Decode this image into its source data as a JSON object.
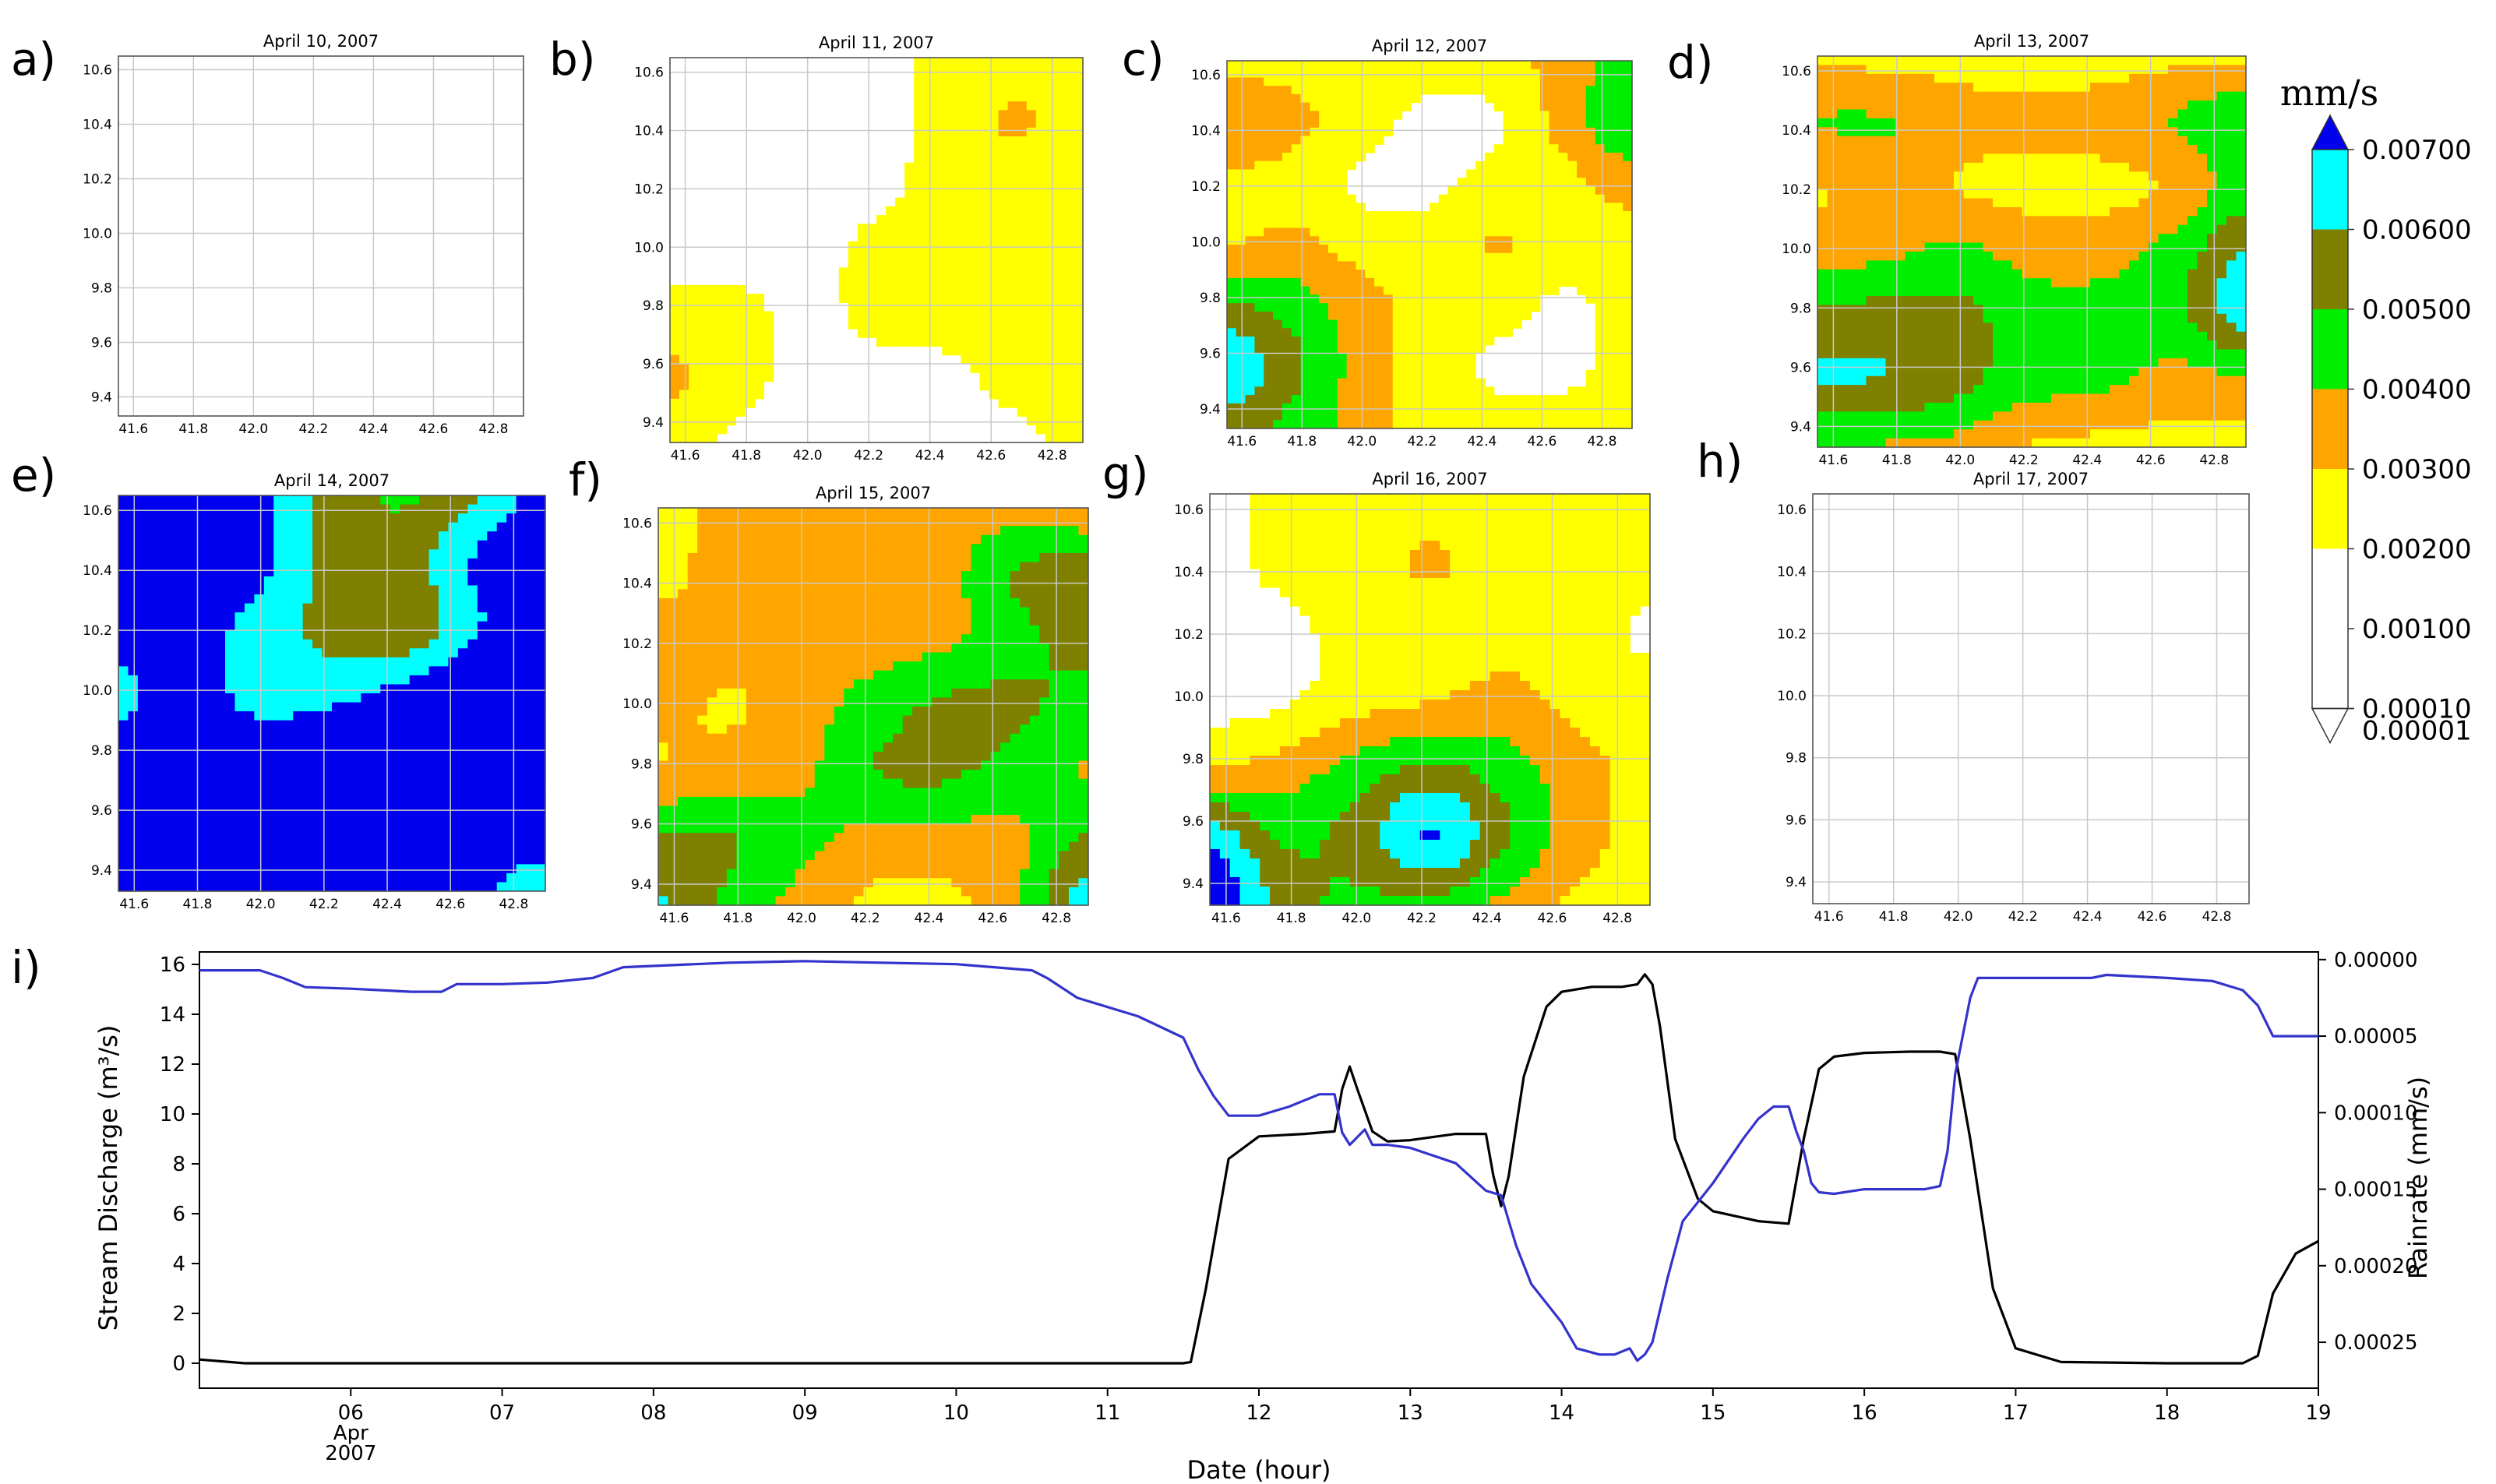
{
  "colors": {
    "c1": "#ffffff",
    "c2": "#ffff00",
    "c3": "#ffa500",
    "c4": "#00ee00",
    "c5": "#7f7f00",
    "c6": "#00ffff",
    "c7": "#0000ee",
    "discharge": "#000000",
    "rainrate": "#3333cc"
  },
  "colorbar": {
    "title": "mm/s",
    "labels": [
      "0.00700",
      "0.00600",
      "0.00500",
      "0.00400",
      "0.00300",
      "0.00200",
      "0.00100",
      "0.00010",
      "0.00001"
    ]
  },
  "chart_data": [
    {
      "type": "heatmap",
      "panel": "a)",
      "title": "April 10, 2007",
      "xticks": [
        "41.6",
        "41.8",
        "42.0",
        "42.2",
        "42.4",
        "42.6",
        "42.8"
      ],
      "yticks": [
        "10.6",
        "10.4",
        "10.2",
        "10.0",
        "9.8",
        "9.6",
        "9.4"
      ],
      "xlim": [
        41.55,
        42.9
      ],
      "ylim": [
        9.33,
        10.65
      ],
      "levels": "0 = below 0.00001 mm/s; 1-6 = 0.001,0.002,0.003,0.004,0.005,0.006 mm/s bands; 7 = above 0.007",
      "grid_level": [
        [
          0,
          0,
          0,
          0,
          0,
          0,
          0
        ],
        [
          0,
          0,
          0,
          0,
          0,
          0,
          0
        ],
        [
          0,
          0,
          0,
          0,
          0,
          0,
          0
        ],
        [
          0,
          0,
          0,
          0,
          0,
          0,
          0
        ],
        [
          0,
          0,
          0,
          0,
          0,
          0,
          0
        ],
        [
          0,
          0,
          0,
          0,
          0,
          0,
          0
        ],
        [
          0,
          0,
          0,
          0,
          0,
          0,
          0
        ]
      ]
    },
    {
      "type": "heatmap",
      "panel": "b)",
      "title": "April 11, 2007",
      "xticks": [
        "41.6",
        "41.8",
        "42.0",
        "42.2",
        "42.4",
        "42.6",
        "42.8"
      ],
      "yticks": [
        "10.6",
        "10.4",
        "10.2",
        "10.0",
        "9.8",
        "9.6",
        "9.4"
      ],
      "xlim": [
        41.55,
        42.9
      ],
      "ylim": [
        9.33,
        10.65
      ],
      "grid_level": [
        [
          0,
          0,
          0,
          0,
          1,
          1,
          1
        ],
        [
          0,
          0,
          0,
          0,
          1,
          2,
          1
        ],
        [
          0,
          0,
          0,
          0,
          1,
          1,
          1
        ],
        [
          0,
          0,
          0,
          1,
          1,
          1,
          1
        ],
        [
          1,
          1,
          0,
          1,
          1,
          1,
          1
        ],
        [
          2,
          1,
          0,
          0,
          0,
          1,
          1
        ],
        [
          1,
          0,
          0,
          0,
          0,
          0,
          1
        ]
      ]
    },
    {
      "type": "heatmap",
      "panel": "c)",
      "title": "April 12, 2007",
      "xticks": [
        "41.6",
        "41.8",
        "42.0",
        "42.2",
        "42.4",
        "42.6",
        "42.8"
      ],
      "yticks": [
        "10.6",
        "10.4",
        "10.2",
        "10.0",
        "9.8",
        "9.6",
        "9.4"
      ],
      "xlim": [
        41.55,
        42.9
      ],
      "ylim": [
        9.33,
        10.65
      ],
      "grid_level": [
        [
          1,
          1,
          1,
          1,
          1,
          2,
          3
        ],
        [
          3,
          2,
          1,
          0,
          0,
          2,
          4
        ],
        [
          1,
          1,
          0,
          0,
          1,
          1,
          2
        ],
        [
          1,
          2,
          1,
          1,
          2,
          1,
          1
        ],
        [
          4,
          3,
          2,
          1,
          1,
          0,
          1
        ],
        [
          6,
          4,
          2,
          1,
          0,
          0,
          1
        ],
        [
          4,
          3,
          2,
          1,
          1,
          1,
          1
        ]
      ]
    },
    {
      "type": "heatmap",
      "panel": "d)",
      "title": "April 13, 2007",
      "xticks": [
        "41.6",
        "41.8",
        "42.0",
        "42.2",
        "42.4",
        "42.6",
        "42.8"
      ],
      "yticks": [
        "10.6",
        "10.4",
        "10.2",
        "10.0",
        "9.8",
        "9.6",
        "9.4"
      ],
      "xlim": [
        41.55,
        42.9
      ],
      "ylim": [
        9.33,
        10.65
      ],
      "grid_level": [
        [
          1,
          1,
          1,
          1,
          1,
          1,
          1
        ],
        [
          3,
          3,
          2,
          2,
          2,
          3,
          4
        ],
        [
          1,
          2,
          1,
          1,
          1,
          1,
          3
        ],
        [
          2,
          2,
          3,
          2,
          2,
          3,
          5
        ],
        [
          4,
          4,
          4,
          3,
          3,
          3,
          6
        ],
        [
          5,
          5,
          4,
          3,
          3,
          2,
          2
        ],
        [
          2,
          2,
          2,
          1,
          1,
          1,
          1
        ]
      ]
    },
    {
      "type": "heatmap",
      "panel": "e)",
      "title": "April 14, 2007",
      "xticks": [
        "41.6",
        "41.8",
        "42.0",
        "42.2",
        "42.4",
        "42.6",
        "42.8"
      ],
      "yticks": [
        "10.6",
        "10.4",
        "10.2",
        "10.0",
        "9.8",
        "9.6",
        "9.4"
      ],
      "xlim": [
        41.55,
        42.9
      ],
      "ylim": [
        9.33,
        10.65
      ],
      "grid_level": [
        [
          6,
          7,
          6,
          4,
          3,
          4,
          6
        ],
        [
          7,
          7,
          6,
          4,
          4,
          6,
          7
        ],
        [
          6,
          6,
          5,
          4,
          3,
          5,
          7
        ],
        [
          5,
          6,
          5,
          5,
          6,
          7,
          7
        ],
        [
          6,
          6,
          6,
          7,
          7,
          7,
          7
        ],
        [
          7,
          7,
          6,
          7,
          7,
          6,
          7
        ],
        [
          7,
          7,
          7,
          7,
          7,
          6,
          4
        ]
      ]
    },
    {
      "type": "heatmap",
      "panel": "f)",
      "title": "April 15, 2007",
      "xticks": [
        "41.6",
        "41.8",
        "42.0",
        "42.2",
        "42.4",
        "42.6",
        "42.8"
      ],
      "yticks": [
        "10.6",
        "10.4",
        "10.2",
        "10.0",
        "9.8",
        "9.6",
        "9.4"
      ],
      "xlim": [
        41.55,
        42.9
      ],
      "ylim": [
        9.33,
        10.65
      ],
      "grid_level": [
        [
          1,
          2,
          2,
          2,
          2,
          2,
          1
        ],
        [
          1,
          2,
          2,
          2,
          2,
          4,
          5
        ],
        [
          2,
          2,
          2,
          2,
          2,
          3,
          4
        ],
        [
          2,
          1,
          2,
          3,
          4,
          4,
          3
        ],
        [
          1,
          2,
          2,
          4,
          4,
          3,
          2
        ],
        [
          4,
          4,
          3,
          2,
          2,
          2,
          4
        ],
        [
          5,
          3,
          2,
          1,
          1,
          2,
          6
        ]
      ]
    },
    {
      "type": "heatmap",
      "panel": "g)",
      "title": "April 16, 2007",
      "xticks": [
        "41.6",
        "41.8",
        "42.0",
        "42.2",
        "42.4",
        "42.6",
        "42.8"
      ],
      "yticks": [
        "10.6",
        "10.4",
        "10.2",
        "10.0",
        "9.8",
        "9.6",
        "9.4"
      ],
      "xlim": [
        41.55,
        42.9
      ],
      "ylim": [
        9.33,
        10.65
      ],
      "grid_level": [
        [
          0,
          1,
          1,
          1,
          1,
          1,
          1
        ],
        [
          0,
          1,
          1,
          2,
          1,
          1,
          1
        ],
        [
          0,
          0,
          1,
          1,
          1,
          1,
          0
        ],
        [
          0,
          0,
          1,
          1,
          2,
          1,
          1
        ],
        [
          1,
          2,
          3,
          4,
          3,
          2,
          1
        ],
        [
          6,
          3,
          4,
          7,
          4,
          2,
          1
        ],
        [
          7,
          4,
          3,
          3,
          2,
          1,
          1
        ]
      ]
    },
    {
      "type": "heatmap",
      "panel": "h)",
      "title": "April 17, 2007",
      "xticks": [
        "41.6",
        "41.8",
        "42.0",
        "42.2",
        "42.4",
        "42.6",
        "42.8"
      ],
      "yticks": [
        "10.6",
        "10.4",
        "10.2",
        "10.0",
        "9.8",
        "9.6",
        "9.4"
      ],
      "xlim": [
        41.55,
        42.9
      ],
      "ylim": [
        9.33,
        10.65
      ],
      "grid_level": [
        [
          0,
          0,
          0,
          0,
          0,
          0,
          0
        ],
        [
          0,
          0,
          0,
          0,
          0,
          0,
          0
        ],
        [
          0,
          0,
          0,
          0,
          0,
          0,
          0
        ],
        [
          0,
          0,
          0,
          0,
          0,
          0,
          0
        ],
        [
          0,
          0,
          0,
          0,
          0,
          0,
          0
        ],
        [
          0,
          0,
          0,
          0,
          0,
          0,
          0
        ],
        [
          0,
          0,
          0,
          0,
          0,
          0,
          0
        ]
      ]
    },
    {
      "type": "line",
      "panel": "i)",
      "xlabel": "Date (hour)",
      "ylabel_left": "Stream Discharge (m³/s)",
      "ylabel_right": "Rainrate (mm/s)",
      "xlim": [
        5.0,
        19.0
      ],
      "xticks": [
        {
          "v": 6,
          "label": "06"
        },
        {
          "v": 7,
          "label": "07"
        },
        {
          "v": 8,
          "label": "08"
        },
        {
          "v": 9,
          "label": "09"
        },
        {
          "v": 10,
          "label": "10"
        },
        {
          "v": 11,
          "label": "11"
        },
        {
          "v": 12,
          "label": "12"
        },
        {
          "v": 13,
          "label": "13"
        },
        {
          "v": 14,
          "label": "14"
        },
        {
          "v": 15,
          "label": "15"
        },
        {
          "v": 16,
          "label": "16"
        },
        {
          "v": 17,
          "label": "17"
        },
        {
          "v": 18,
          "label": "18"
        },
        {
          "v": 19,
          "label": "19"
        }
      ],
      "date_sublabels": [
        "Apr",
        "2007"
      ],
      "ylim_left": [
        -1,
        16.5
      ],
      "yticks_left": [
        0,
        2,
        4,
        6,
        8,
        10,
        12,
        14,
        16
      ],
      "ylim_right": [
        0.00028,
        -5e-06
      ],
      "yticks_right": [
        "0.00000",
        "0.00005",
        "0.00010",
        "0.00015",
        "0.00020",
        "0.00025"
      ],
      "yticks_right_values": [
        0.0,
        5e-05,
        0.0001,
        0.00015,
        0.0002,
        0.00025
      ],
      "series": [
        {
          "name": "Stream Discharge",
          "axis": "left",
          "x": [
            5.0,
            5.3,
            6.0,
            7.0,
            8.0,
            9.0,
            10.0,
            11.0,
            11.5,
            11.55,
            11.65,
            11.8,
            12.0,
            12.3,
            12.5,
            12.55,
            12.6,
            12.65,
            12.75,
            12.85,
            13.0,
            13.3,
            13.5,
            13.55,
            13.6,
            13.65,
            13.75,
            13.9,
            14.0,
            14.2,
            14.4,
            14.5,
            14.55,
            14.6,
            14.65,
            14.75,
            14.9,
            15.0,
            15.3,
            15.5,
            15.6,
            15.7,
            15.8,
            16.0,
            16.3,
            16.5,
            16.6,
            16.7,
            16.85,
            17.0,
            17.3,
            18.0,
            18.5,
            18.6,
            18.7,
            18.85,
            19.0
          ],
          "y": [
            0.15,
            0.0,
            0.0,
            0.0,
            0.0,
            0.0,
            0.0,
            0.0,
            0.0,
            0.05,
            3.0,
            8.2,
            9.1,
            9.2,
            9.3,
            11.0,
            11.9,
            11.0,
            9.3,
            8.9,
            8.95,
            9.2,
            9.2,
            7.5,
            6.3,
            7.5,
            11.5,
            14.3,
            14.9,
            15.1,
            15.1,
            15.2,
            15.6,
            15.2,
            13.5,
            9.0,
            6.6,
            6.1,
            5.7,
            5.6,
            9.0,
            11.8,
            12.3,
            12.45,
            12.5,
            12.5,
            12.4,
            9.0,
            3.0,
            0.6,
            0.05,
            0.0,
            0.0,
            0.3,
            2.8,
            4.4,
            4.9
          ]
        },
        {
          "name": "Rainrate",
          "axis": "right",
          "x": [
            5.0,
            5.4,
            5.55,
            5.7,
            6.0,
            6.4,
            6.6,
            6.7,
            7.0,
            7.3,
            7.6,
            7.8,
            8.5,
            9.0,
            9.5,
            10.0,
            10.5,
            10.6,
            10.8,
            11.2,
            11.5,
            11.6,
            11.7,
            11.8,
            12.0,
            12.2,
            12.4,
            12.5,
            12.55,
            12.6,
            12.7,
            12.75,
            12.85,
            13.0,
            13.3,
            13.5,
            13.6,
            13.7,
            13.8,
            14.0,
            14.1,
            14.25,
            14.35,
            14.45,
            14.5,
            14.55,
            14.6,
            14.7,
            14.8,
            15.0,
            15.2,
            15.3,
            15.4,
            15.5,
            15.55,
            15.6,
            15.65,
            15.7,
            15.8,
            16.0,
            16.2,
            16.4,
            16.5,
            16.55,
            16.6,
            16.7,
            16.75,
            16.9,
            17.0,
            17.3,
            17.5,
            17.6,
            18.0,
            18.3,
            18.5,
            18.6,
            18.7,
            19.0
          ],
          "y": [
            7e-06,
            7e-06,
            1.2e-05,
            1.8e-05,
            1.9e-05,
            2.1e-05,
            2.1e-05,
            1.6e-05,
            1.6e-05,
            1.5e-05,
            1.2e-05,
            5e-06,
            2e-06,
            1e-06,
            2e-06,
            3e-06,
            7e-06,
            1.2e-05,
            2.5e-05,
            3.7e-05,
            5.1e-05,
            7.2e-05,
            8.9e-05,
            0.000102,
            0.000102,
            9.6e-05,
            8.8e-05,
            8.8e-05,
            0.000113,
            0.000121,
            0.000111,
            0.000121,
            0.000121,
            0.000123,
            0.000133,
            0.000151,
            0.000154,
            0.000187,
            0.000212,
            0.000237,
            0.000254,
            0.000258,
            0.000258,
            0.000254,
            0.000262,
            0.000258,
            0.00025,
            0.000208,
            0.000171,
            0.000146,
            0.000117,
            0.000104,
            9.6e-05,
            9.6e-05,
            0.000112,
            0.000125,
            0.000146,
            0.000152,
            0.000153,
            0.00015,
            0.00015,
            0.00015,
            0.000148,
            0.000125,
            7.5e-05,
            2.5e-05,
            1.2e-05,
            1.2e-05,
            1.2e-05,
            1.2e-05,
            1.2e-05,
            1e-05,
            1.2e-05,
            1.4e-05,
            2e-05,
            3e-05,
            5e-05,
            5e-05
          ]
        }
      ]
    }
  ]
}
